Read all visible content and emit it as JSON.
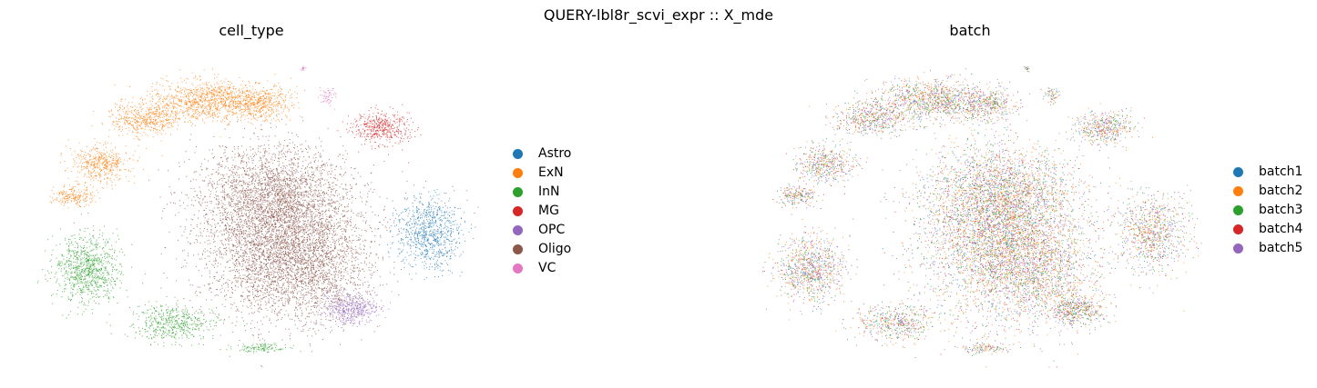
{
  "figure": {
    "suptitle": "QUERY-lbl8r_scvi_expr :: X_mde"
  },
  "chart_data": [
    {
      "type": "scatter",
      "title": "cell_type",
      "xlabel": "",
      "ylabel": "",
      "axes_visible": false,
      "legend_placement": "right",
      "series": [
        {
          "name": "Astro",
          "color": "#1f77b4"
        },
        {
          "name": "ExN",
          "color": "#ff7f0e"
        },
        {
          "name": "InN",
          "color": "#2ca02c"
        },
        {
          "name": "MG",
          "color": "#d62728"
        },
        {
          "name": "OPC",
          "color": "#9467bd"
        },
        {
          "name": "Oligo",
          "color": "#8c564b"
        },
        {
          "name": "VC",
          "color": "#e377c2"
        }
      ]
    },
    {
      "type": "scatter",
      "title": "batch",
      "xlabel": "",
      "ylabel": "",
      "axes_visible": false,
      "legend_placement": "right",
      "series": [
        {
          "name": "batch1",
          "color": "#1f77b4"
        },
        {
          "name": "batch2",
          "color": "#ff7f0e"
        },
        {
          "name": "batch3",
          "color": "#2ca02c"
        },
        {
          "name": "batch4",
          "color": "#d62728"
        },
        {
          "name": "batch5",
          "color": "#9467bd"
        }
      ]
    }
  ]
}
